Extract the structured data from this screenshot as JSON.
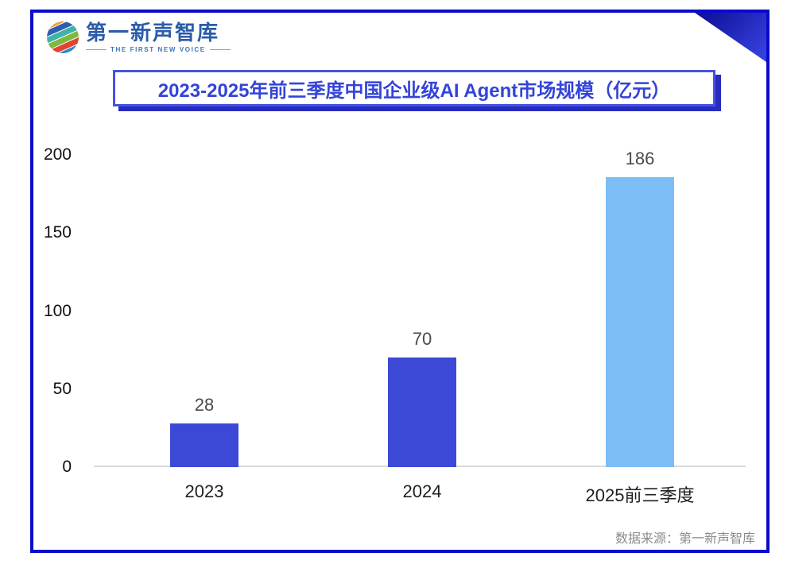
{
  "logo": {
    "name": "第一新声智库",
    "tagline": "THE FIRST NEW VOICE",
    "icon": "globe-swirl-icon"
  },
  "title": "2023-2025年前三季度中国企业级AI Agent市场规模（亿元）",
  "source_note": "数据来源：第一新声智库",
  "colors": {
    "frame_border": "#0a0acc",
    "title_text": "#3344da",
    "title_border": "#4553e2",
    "title_shadow": "#272cbe",
    "bar_primary": "#3b49d6",
    "bar_highlight": "#7cbef5",
    "axis_line": "#d9d9d9",
    "value_label": "#4a4a4a",
    "category_label": "#1f1f1f",
    "source_text": "#8c8c8c",
    "corner_triangle_dark": "#12129b",
    "corner_triangle_light": "#3440dd"
  },
  "chart_data": {
    "type": "bar",
    "title": "2023-2025年前三季度中国企业级AI Agent市场规模（亿元）",
    "categories": [
      "2023",
      "2024",
      "2025前三季度"
    ],
    "values": [
      28,
      70,
      186
    ],
    "bar_colors": [
      "#3b49d6",
      "#3b49d6",
      "#7cbef5"
    ],
    "yticks": [
      0,
      50,
      100,
      150,
      200
    ],
    "ylim": [
      0,
      200
    ],
    "xlabel": "",
    "ylabel": "",
    "grid": false,
    "legend": false,
    "value_labels_shown": true
  }
}
